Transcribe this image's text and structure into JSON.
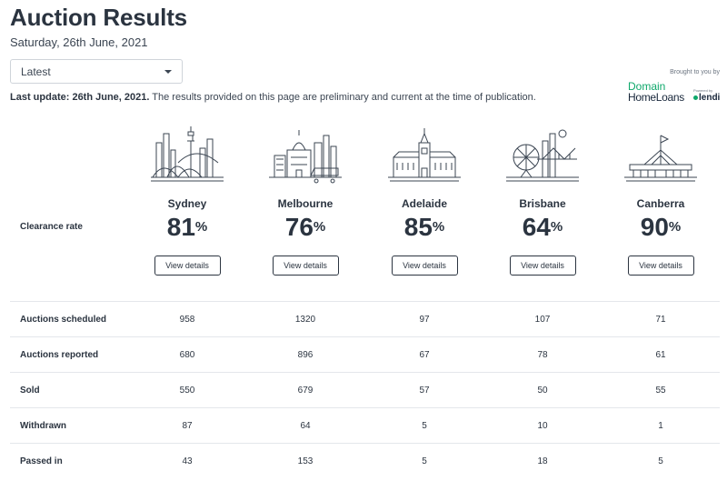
{
  "header": {
    "title": "Auction Results",
    "date": "Saturday, 26th June, 2021"
  },
  "filter": {
    "selected": "Latest"
  },
  "notice": {
    "bold": "Last update: 26th June, 2021.",
    "text": " The results provided on this page are preliminary and current at the time of publication."
  },
  "branding": {
    "brought_by": "Brought to you by",
    "domain": "Domain",
    "home_loans": "HomeLoans",
    "powered_by": "Powered by",
    "lendi": "lendi",
    "colors": {
      "green": "#0ea86b",
      "navy": "#17263a"
    }
  },
  "clearance_label": "Clearance rate",
  "view_details_label": "View details",
  "percent_sign": "%",
  "cities": [
    {
      "name": "Sydney",
      "rate": "81",
      "icon": "sydney-skyline-icon"
    },
    {
      "name": "Melbourne",
      "rate": "76",
      "icon": "melbourne-skyline-icon"
    },
    {
      "name": "Adelaide",
      "rate": "85",
      "icon": "adelaide-skyline-icon"
    },
    {
      "name": "Brisbane",
      "rate": "64",
      "icon": "brisbane-skyline-icon"
    },
    {
      "name": "Canberra",
      "rate": "90",
      "icon": "canberra-skyline-icon"
    }
  ],
  "table": {
    "rows": [
      {
        "label": "Auctions scheduled",
        "values": [
          "958",
          "1320",
          "97",
          "107",
          "71"
        ]
      },
      {
        "label": "Auctions reported",
        "values": [
          "680",
          "896",
          "67",
          "78",
          "61"
        ]
      },
      {
        "label": "Sold",
        "values": [
          "550",
          "679",
          "57",
          "50",
          "55"
        ]
      },
      {
        "label": "Withdrawn",
        "values": [
          "87",
          "64",
          "5",
          "10",
          "1"
        ]
      },
      {
        "label": "Passed in",
        "values": [
          "43",
          "153",
          "5",
          "18",
          "5"
        ]
      }
    ]
  }
}
